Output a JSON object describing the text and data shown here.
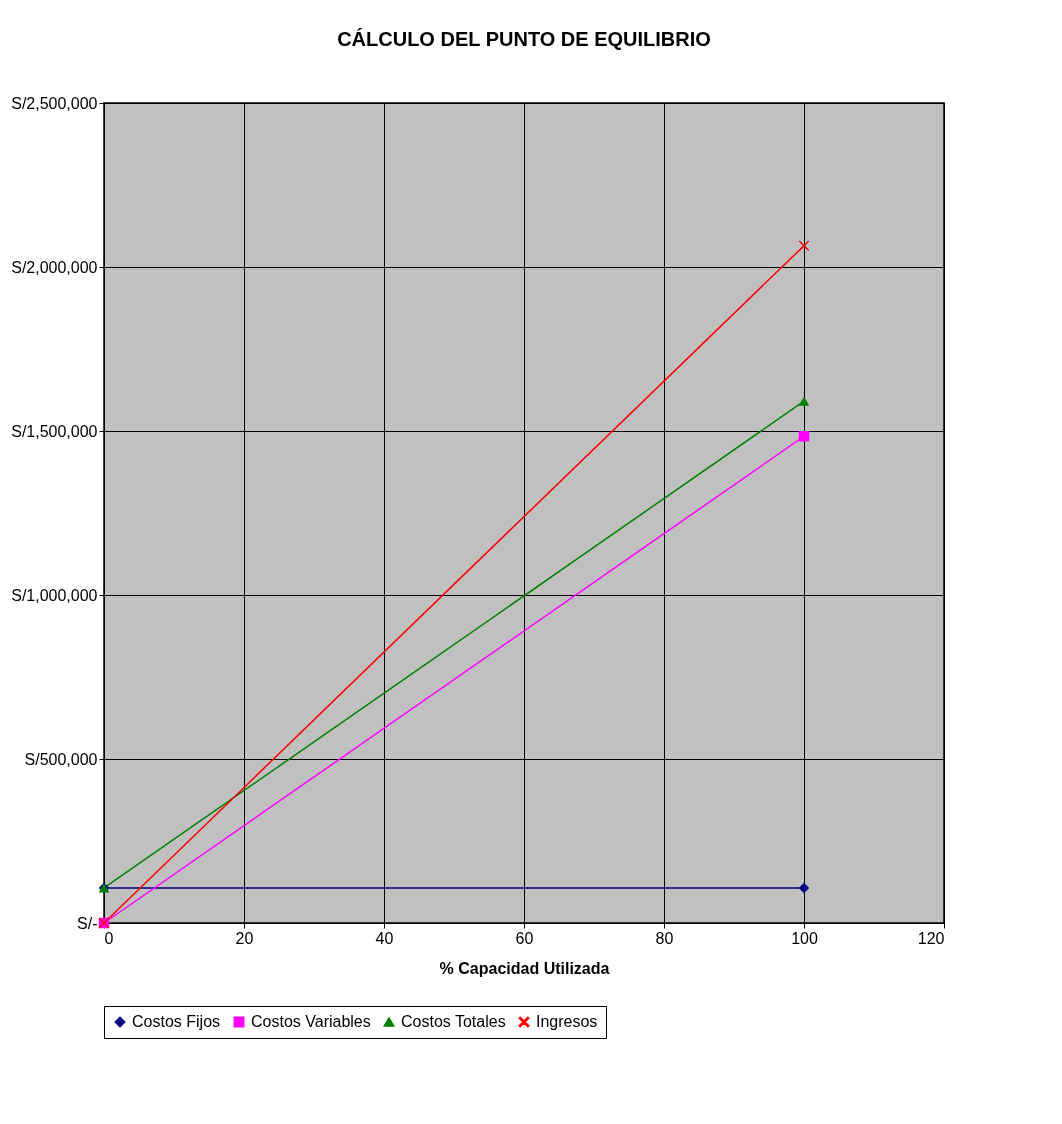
{
  "chart_data": {
    "type": "line",
    "title": "CÁLCULO DEL PUNTO DE EQUILIBRIO",
    "xlabel": "% Capacidad Utilizada",
    "x": [
      0,
      100
    ],
    "series": [
      {
        "name": "Costos Fijos",
        "color": "#000080",
        "marker": "diamond",
        "values": [
          107000,
          107000
        ]
      },
      {
        "name": "Costos Variables",
        "color": "#ff00ff",
        "marker": "square",
        "values": [
          0,
          1484000
        ]
      },
      {
        "name": "Costos Totales",
        "color": "#008000",
        "marker": "triangle",
        "values": [
          107000,
          1591000
        ]
      },
      {
        "name": "Ingresos",
        "color": "#ff0000",
        "marker": "cross",
        "values": [
          0,
          2065000
        ]
      }
    ],
    "xlim": [
      0,
      120
    ],
    "xticks": [
      0,
      20,
      40,
      60,
      80,
      100,
      120
    ],
    "ylim": [
      0,
      2500000
    ],
    "yticks": [
      {
        "value": 0,
        "label": "S/-"
      },
      {
        "value": 500000,
        "label": "S/500,000"
      },
      {
        "value": 1000000,
        "label": "S/1,000,000"
      },
      {
        "value": 1500000,
        "label": "S/1,500,000"
      },
      {
        "value": 2000000,
        "label": "S/2,000,000"
      },
      {
        "value": 2500000,
        "label": "S/2,500,000"
      }
    ],
    "grid": true,
    "legend": "bottom",
    "line_style": "solid"
  }
}
